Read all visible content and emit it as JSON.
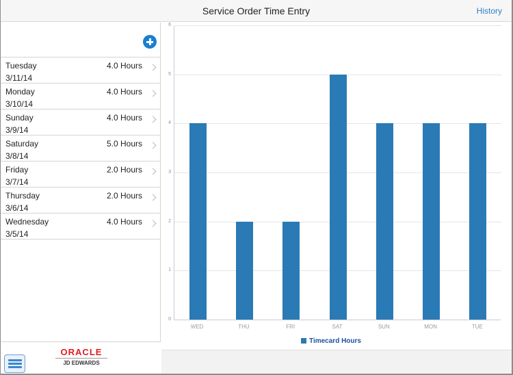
{
  "header": {
    "title": "Service Order Time Entry",
    "history_label": "History"
  },
  "left_panel": {
    "add_icon": "plus-circle-icon",
    "entries": [
      {
        "day": "Tuesday",
        "date": "3/11/14",
        "hours": "4.0 Hours"
      },
      {
        "day": "Monday",
        "date": "3/10/14",
        "hours": "4.0 Hours"
      },
      {
        "day": "Sunday",
        "date": "3/9/14",
        "hours": "4.0 Hours"
      },
      {
        "day": "Saturday",
        "date": "3/8/14",
        "hours": "5.0 Hours"
      },
      {
        "day": "Friday",
        "date": "3/7/14",
        "hours": "2.0 Hours"
      },
      {
        "day": "Thursday",
        "date": "3/6/14",
        "hours": "2.0 Hours"
      },
      {
        "day": "Wednesday",
        "date": "3/5/14",
        "hours": "4.0 Hours"
      }
    ]
  },
  "footer": {
    "menu_icon": "hamburger-menu-icon",
    "logo_top": "ORACLE",
    "logo_bottom": "JD EDWARDS"
  },
  "colors": {
    "accent": "#2f7fc1",
    "bar": "#2a7ab5",
    "legend_text": "#1d4f9c",
    "oracle_red": "#e01a22"
  },
  "chart_data": {
    "type": "bar",
    "categories": [
      "WED",
      "THU",
      "FRI",
      "SAT",
      "SUN",
      "MON",
      "TUE"
    ],
    "series": [
      {
        "name": "Timecard Hours",
        "values": [
          4,
          2,
          2,
          5,
          4,
          4,
          4
        ]
      }
    ],
    "yticks": [
      "0",
      "1",
      "2",
      "3",
      "4",
      "5",
      "6"
    ],
    "ylim": [
      0,
      6
    ],
    "grid": true,
    "legend_position": "bottom",
    "title": "",
    "xlabel": "",
    "ylabel": ""
  }
}
